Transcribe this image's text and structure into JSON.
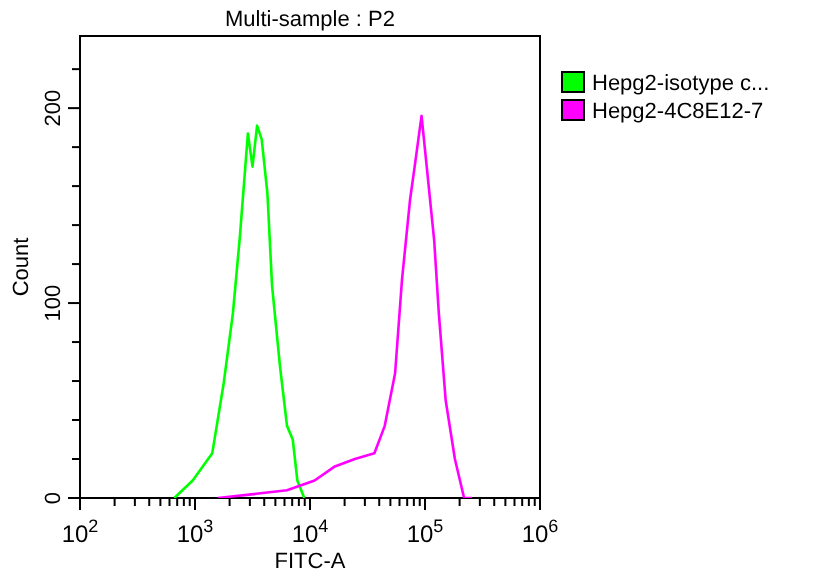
{
  "chart_data": {
    "type": "line",
    "title": "Multi-sample : P2",
    "xlabel": "FITC-A",
    "ylabel": "Count",
    "log": "x",
    "marker": "none",
    "line_style": "solid",
    "legend": "right",
    "grid": false,
    "xlim": [
      100,
      1000000
    ],
    "ylim": [
      0,
      237
    ],
    "xticks": [
      {
        "value": 100,
        "label": "10$^{2}$"
      },
      {
        "value": 200,
        "label": null
      },
      {
        "value": 300,
        "label": null
      },
      {
        "value": 400,
        "label": null
      },
      {
        "value": 500,
        "label": null
      },
      {
        "value": 600,
        "label": null
      },
      {
        "value": 700,
        "label": null
      },
      {
        "value": 800,
        "label": null
      },
      {
        "value": 900,
        "label": null
      },
      {
        "value": 1000,
        "label": "10$^{3}$"
      },
      {
        "value": 2000,
        "label": null
      },
      {
        "value": 3000,
        "label": null
      },
      {
        "value": 4000,
        "label": null
      },
      {
        "value": 5000,
        "label": null
      },
      {
        "value": 6000,
        "label": null
      },
      {
        "value": 7000,
        "label": null
      },
      {
        "value": 8000,
        "label": null
      },
      {
        "value": 9000,
        "label": null
      },
      {
        "value": 10000,
        "label": "10$^{4}$"
      },
      {
        "value": 20000,
        "label": null
      },
      {
        "value": 30000,
        "label": null
      },
      {
        "value": 40000,
        "label": null
      },
      {
        "value": 50000,
        "label": null
      },
      {
        "value": 60000,
        "label": null
      },
      {
        "value": 70000,
        "label": null
      },
      {
        "value": 80000,
        "label": null
      },
      {
        "value": 90000,
        "label": null
      },
      {
        "value": 100000,
        "label": "10$^{5}$"
      },
      {
        "value": 200000,
        "label": null
      },
      {
        "value": 300000,
        "label": null
      },
      {
        "value": 400000,
        "label": null
      },
      {
        "value": 500000,
        "label": null
      },
      {
        "value": 600000,
        "label": null
      },
      {
        "value": 700000,
        "label": null
      },
      {
        "value": 800000,
        "label": null
      },
      {
        "value": 900000,
        "label": null
      },
      {
        "value": 1000000,
        "label": "10$^{6}$"
      }
    ],
    "yticks": [
      0,
      {
        "value": 20,
        "label": null
      },
      {
        "value": 40,
        "label": null
      },
      {
        "value": 60,
        "label": null
      },
      {
        "value": 80,
        "label": null
      },
      100,
      {
        "value": 120,
        "label": null
      },
      {
        "value": 140,
        "label": null
      },
      {
        "value": 160,
        "label": null
      },
      {
        "value": 180,
        "label": null
      },
      200,
      {
        "value": 220,
        "label": null
      }
    ],
    "series": [
      {
        "name": "Hepg2-isotype c...",
        "color": "#00ff00",
        "x": [
          661,
          955,
          1413,
          1778,
          2138,
          2455,
          2884,
          3162,
          3467,
          3802,
          4266,
          4677,
          5495,
          6310,
          7079,
          7762,
          8913
        ],
        "values": [
          0,
          9,
          23,
          59,
          95,
          134,
          187,
          170,
          191,
          184,
          156,
          109,
          67,
          37,
          30,
          9,
          0
        ]
      },
      {
        "name": "Hepg2-4C8E12-7",
        "color": "#ff00ff",
        "x": [
          1585,
          3236,
          6310,
          10965,
          16218,
          24547,
          36308,
          44668,
          54954,
          63096,
          74131,
          81283,
          93325,
          104713,
          120226,
          131826,
          151356,
          181970,
          218776,
          257040
        ],
        "values": [
          0,
          2,
          4,
          9,
          16,
          20,
          23,
          37,
          64,
          112,
          153,
          170,
          196,
          167,
          132,
          95,
          50,
          20,
          0,
          0
        ]
      }
    ]
  }
}
